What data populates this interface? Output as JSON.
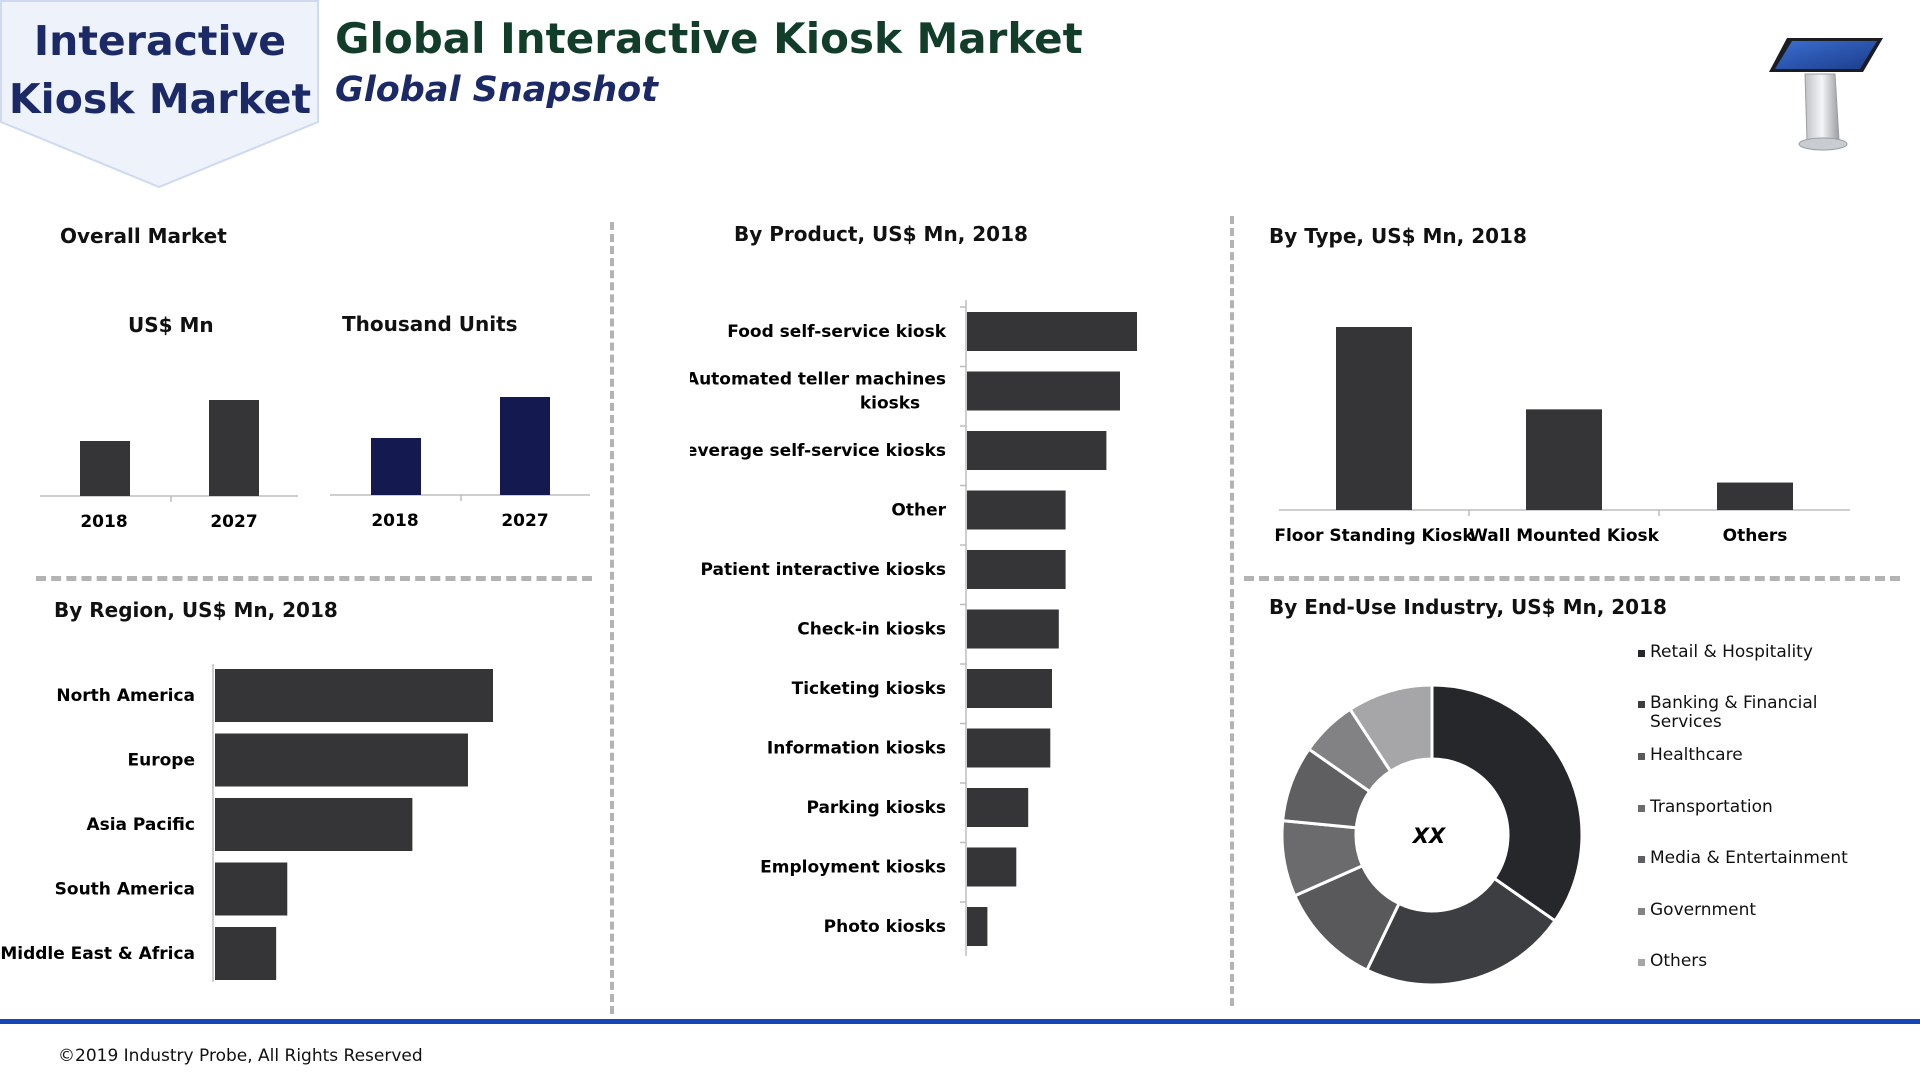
{
  "header": {
    "badge_line1": "Interactive",
    "badge_line2": "Kiosk Market",
    "title": "Global Interactive Kiosk Market",
    "subtitle": "Global Snapshot"
  },
  "footer": {
    "copyright": "©2019 Industry Probe, All Rights Reserved"
  },
  "colors": {
    "bar_dark": "#353538",
    "bar_navy": "#141a4f",
    "accent_blue": "#1546b7"
  },
  "chart_data": [
    {
      "id": "overall_usd",
      "section_title": "Overall Market",
      "type": "bar",
      "title": "US$ Mn",
      "categories": [
        "2018",
        "2027"
      ],
      "values": [
        55,
        96
      ],
      "ylim": [
        0,
        100
      ]
    },
    {
      "id": "overall_units",
      "type": "bar",
      "title": "Thousand Units",
      "categories": [
        "2018",
        "2027"
      ],
      "values": [
        57,
        98
      ],
      "ylim": [
        0,
        100
      ]
    },
    {
      "id": "by_region",
      "type": "bar",
      "orientation": "horizontal",
      "title": "By Region, US$ Mn, 2018",
      "categories": [
        "North America",
        "Europe",
        "Asia Pacific",
        "South America",
        "Middle East & Africa"
      ],
      "values": [
        100,
        91,
        71,
        26,
        22
      ],
      "xlim": [
        0,
        100
      ]
    },
    {
      "id": "by_product",
      "type": "bar",
      "orientation": "horizontal",
      "title": "By Product, US$ Mn, 2018",
      "categories": [
        "Food self-service kiosk",
        "Automated teller machines kiosks",
        "Beverage self-service kiosks",
        "Other",
        "Patient interactive kiosks",
        "Check-in kiosks",
        "Ticketing kiosks",
        "Information kiosks",
        "Parking kiosks",
        "Employment kiosks",
        "Photo kiosks"
      ],
      "values": [
        100,
        90,
        82,
        58,
        58,
        54,
        50,
        49,
        36,
        29,
        12
      ],
      "xlim": [
        0,
        100
      ]
    },
    {
      "id": "by_type",
      "type": "bar",
      "title": "By Type, US$ Mn, 2018",
      "categories": [
        "Floor Standing Kiosk",
        "Wall Mounted Kiosk",
        "Others"
      ],
      "values": [
        100,
        55,
        15
      ],
      "ylim": [
        0,
        100
      ]
    },
    {
      "id": "by_end_use",
      "type": "pie",
      "donut": true,
      "title": "By End-Use Industry, US$ Mn, 2018",
      "center_label": "XX",
      "labels": [
        "Retail & Hospitality",
        "Banking & Financial Services",
        "Healthcare",
        "Transportation",
        "Media & Entertainment",
        "Government",
        "Others"
      ],
      "values": [
        34,
        22,
        11,
        8,
        8,
        6,
        9
      ],
      "colors": [
        "#26272b",
        "#3d3e42",
        "#59595c",
        "#6b6b6e",
        "#5f5f62",
        "#828285",
        "#a6a6a8"
      ]
    }
  ]
}
